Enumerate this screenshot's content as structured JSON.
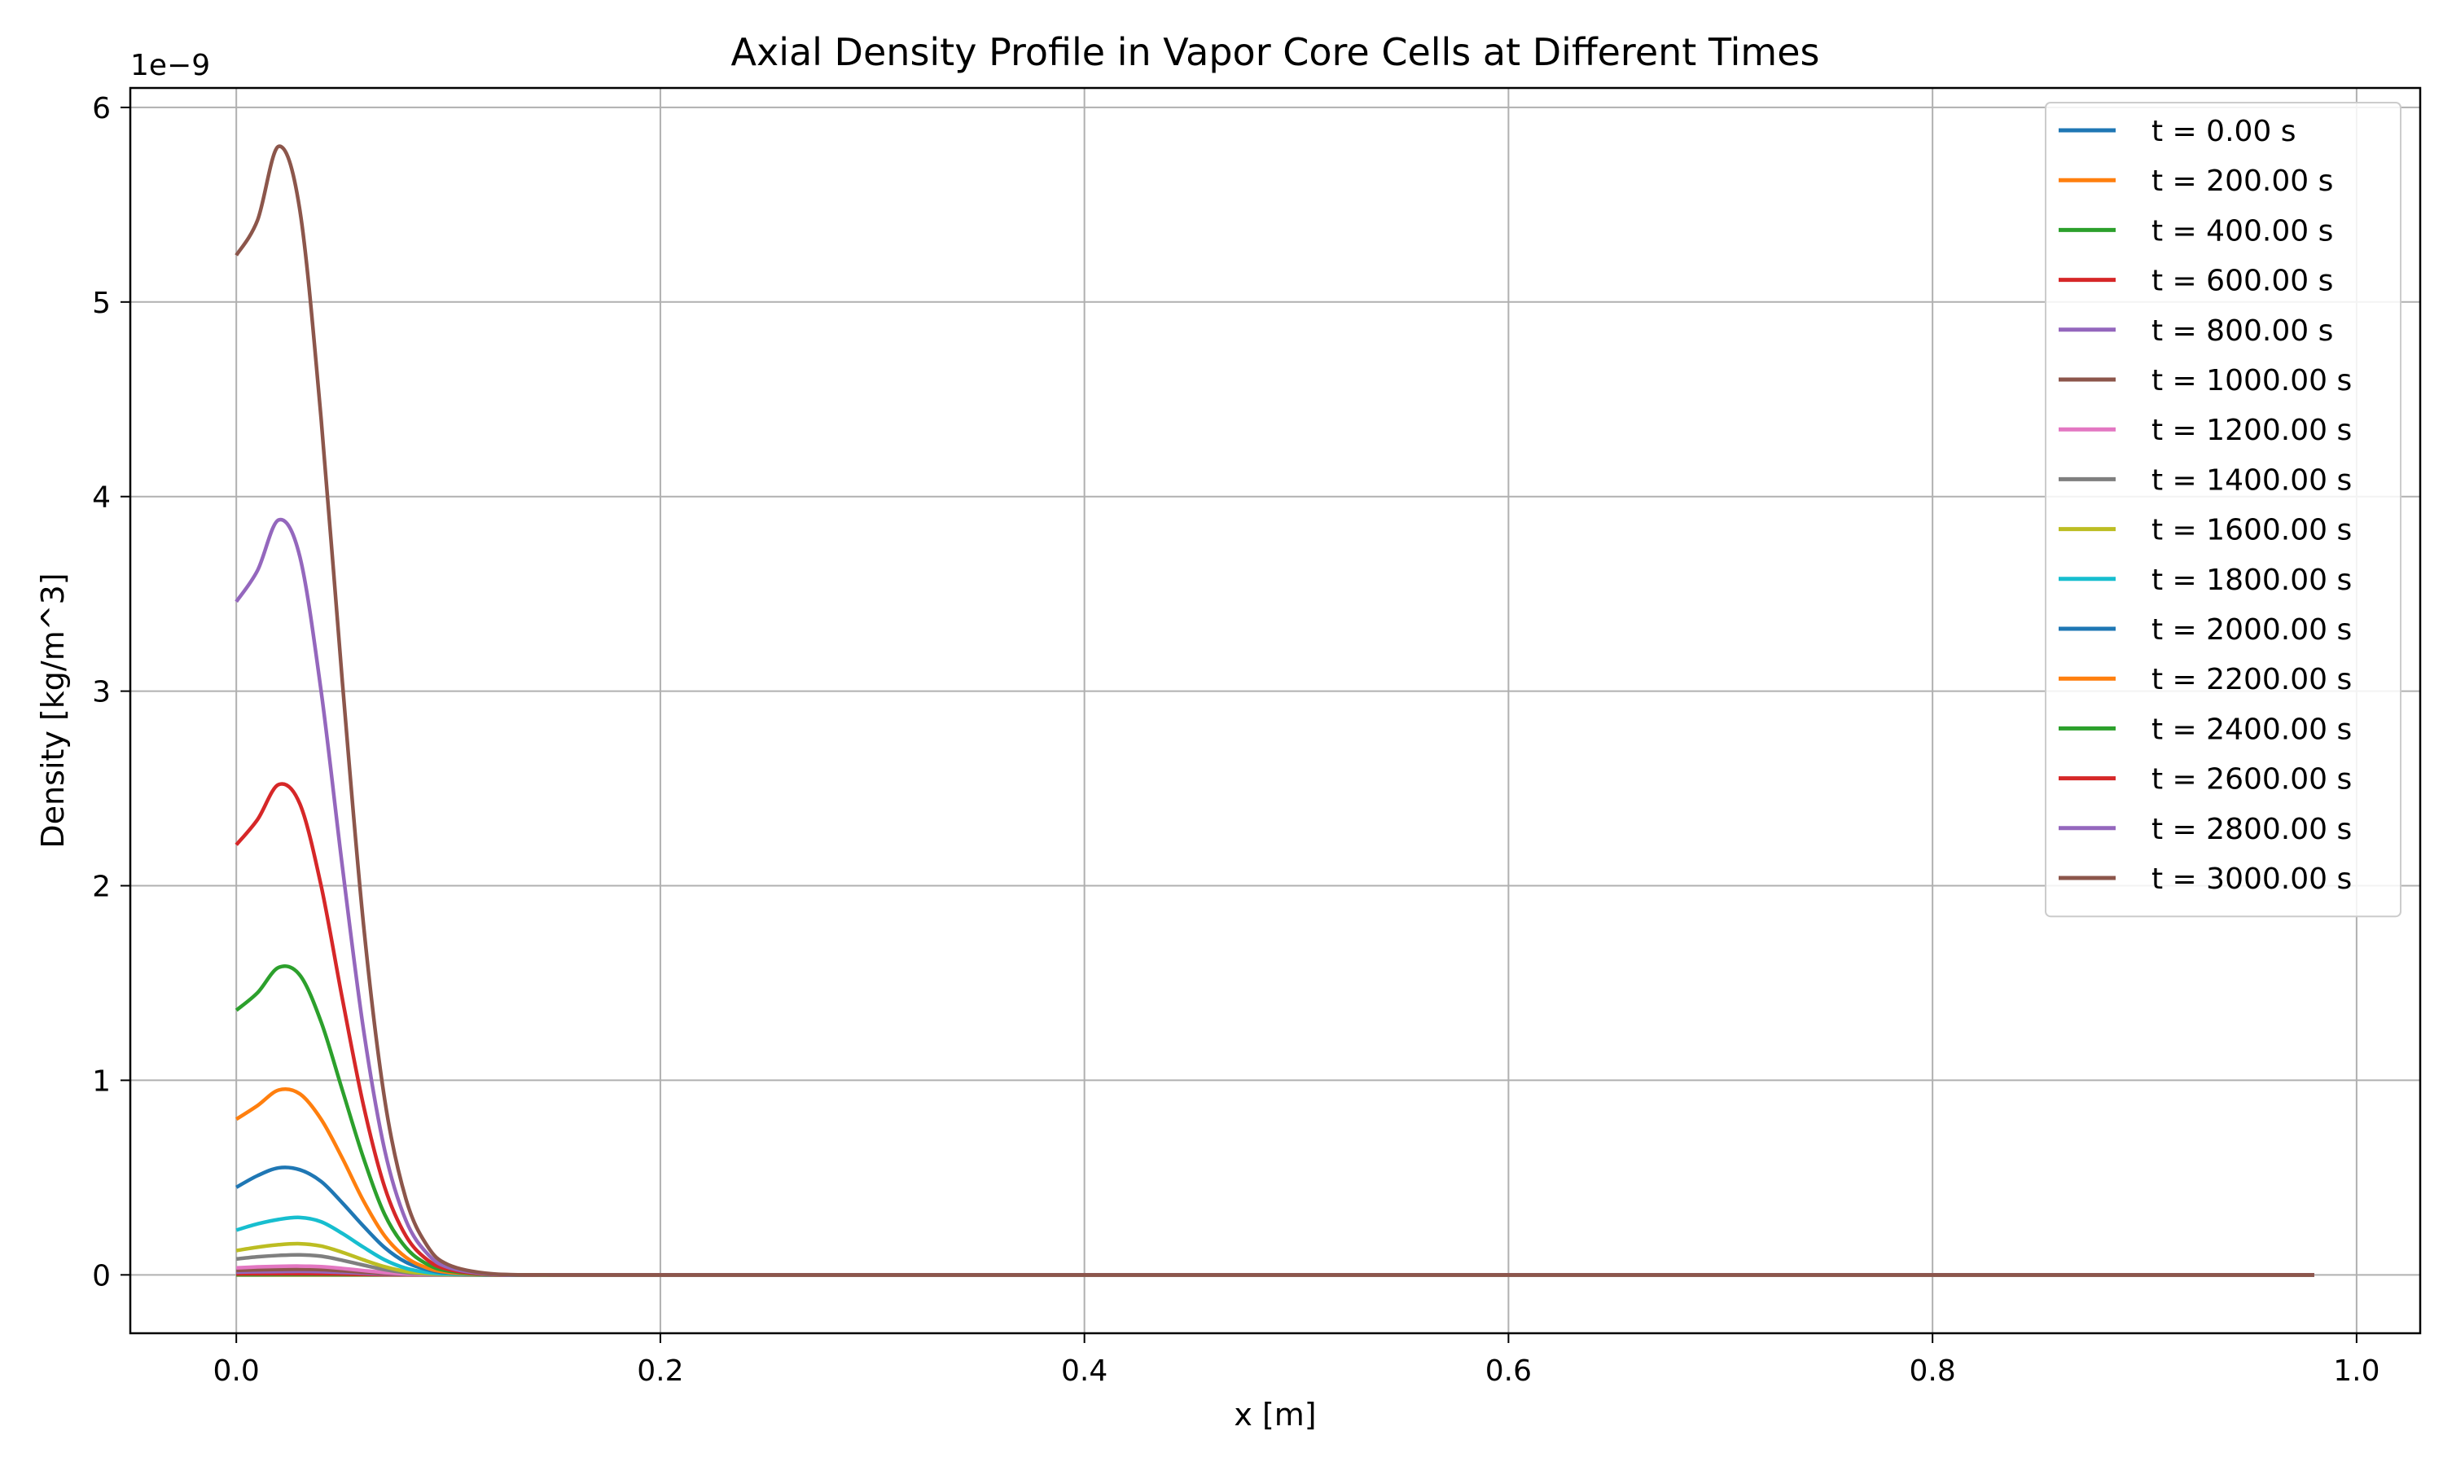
{
  "chart_data": {
    "type": "line",
    "title": "Axial Density Profile in Vapor Core Cells at Different Times",
    "xlabel": "x [m]",
    "ylabel": "Density [kg/m^3]",
    "y_offset_label": "1e−9",
    "xlim": [
      -0.05,
      1.03
    ],
    "ylim": [
      -0.3,
      6.1
    ],
    "x_ticks": [
      0.0,
      0.2,
      0.4,
      0.6,
      0.8,
      1.0
    ],
    "x_tick_labels": [
      "0.0",
      "0.2",
      "0.4",
      "0.6",
      "0.8",
      "1.0"
    ],
    "y_ticks": [
      0,
      1,
      2,
      3,
      4,
      5,
      6
    ],
    "y_tick_labels": [
      "0",
      "1",
      "2",
      "3",
      "4",
      "5",
      "6"
    ],
    "grid": true,
    "legend_position": "top-right",
    "x": [
      0.0,
      0.01,
      0.02,
      0.03,
      0.04,
      0.05,
      0.06,
      0.07,
      0.08,
      0.09,
      0.1,
      0.12,
      0.15,
      0.2,
      0.3,
      0.5,
      0.7,
      0.98
    ],
    "series": [
      {
        "name": "t = 0.00 s",
        "color": "#1f77b4",
        "values": [
          0.0,
          0.0,
          0.0,
          0.0,
          0.0,
          0.0,
          0.0,
          0.0,
          0.0,
          0.0,
          0.0,
          0.0,
          0.0,
          0.0,
          0.0,
          0.0,
          0.0,
          0.0
        ]
      },
      {
        "name": "t = 200.00 s",
        "color": "#ff7f0e",
        "values": [
          0.0,
          0.0,
          0.0,
          0.0,
          0.0,
          0.0,
          0.0,
          0.0,
          0.0,
          0.0,
          0.0,
          0.0,
          0.0,
          0.0,
          0.0,
          0.0,
          0.0,
          0.0
        ]
      },
      {
        "name": "t = 400.00 s",
        "color": "#2ca02c",
        "values": [
          0.001,
          0.0011,
          0.0012,
          0.0013,
          0.0012,
          0.0009,
          0.0006,
          0.0003,
          0.0001,
          0.0,
          0.0,
          0.0,
          0.0,
          0.0,
          0.0,
          0.0,
          0.0,
          0.0
        ]
      },
      {
        "name": "t = 600.00 s",
        "color": "#d62728",
        "values": [
          0.005,
          0.0055,
          0.006,
          0.0062,
          0.0058,
          0.0045,
          0.003,
          0.0016,
          0.0007,
          0.0003,
          0.0001,
          0.0,
          0.0,
          0.0,
          0.0,
          0.0,
          0.0,
          0.0
        ]
      },
      {
        "name": "t = 800.00 s",
        "color": "#9467bd",
        "values": [
          0.014,
          0.016,
          0.017,
          0.018,
          0.0165,
          0.013,
          0.0085,
          0.0045,
          0.002,
          0.0008,
          0.0003,
          0.0,
          0.0,
          0.0,
          0.0,
          0.0,
          0.0,
          0.0
        ]
      },
      {
        "name": "t = 1000.00 s",
        "color": "#8c564b",
        "values": [
          0.023,
          0.026,
          0.028,
          0.029,
          0.027,
          0.021,
          0.014,
          0.0075,
          0.0033,
          0.0013,
          0.0005,
          0.0,
          0.0,
          0.0,
          0.0,
          0.0,
          0.0,
          0.0
        ]
      },
      {
        "name": "t = 1200.00 s",
        "color": "#e377c2",
        "values": [
          0.036,
          0.041,
          0.044,
          0.045,
          0.042,
          0.033,
          0.022,
          0.012,
          0.0052,
          0.002,
          0.0008,
          0.0001,
          0.0,
          0.0,
          0.0,
          0.0,
          0.0,
          0.0
        ]
      },
      {
        "name": "t = 1400.00 s",
        "color": "#7f7f7f",
        "values": [
          0.082,
          0.093,
          0.1,
          0.103,
          0.096,
          0.075,
          0.05,
          0.027,
          0.012,
          0.0046,
          0.0017,
          0.0002,
          0.0,
          0.0,
          0.0,
          0.0,
          0.0,
          0.0
        ]
      },
      {
        "name": "t = 1600.00 s",
        "color": "#bcbd22",
        "values": [
          0.125,
          0.142,
          0.155,
          0.16,
          0.148,
          0.116,
          0.077,
          0.042,
          0.018,
          0.007,
          0.0026,
          0.0003,
          0.0,
          0.0,
          0.0,
          0.0,
          0.0,
          0.0
        ]
      },
      {
        "name": "t = 1800.00 s",
        "color": "#17becf",
        "values": [
          0.23,
          0.262,
          0.285,
          0.295,
          0.273,
          0.213,
          0.142,
          0.077,
          0.034,
          0.013,
          0.0048,
          0.0005,
          0.0,
          0.0,
          0.0,
          0.0,
          0.0,
          0.0
        ]
      },
      {
        "name": "t = 2000.00 s",
        "color": "#1f77b4",
        "values": [
          0.45,
          0.51,
          0.55,
          0.54,
          0.48,
          0.37,
          0.25,
          0.14,
          0.065,
          0.027,
          0.01,
          0.001,
          0.0,
          0.0,
          0.0,
          0.0,
          0.0,
          0.0
        ]
      },
      {
        "name": "t = 2200.00 s",
        "color": "#ff7f0e",
        "values": [
          0.8,
          0.87,
          0.95,
          0.93,
          0.8,
          0.6,
          0.38,
          0.2,
          0.09,
          0.036,
          0.013,
          0.0015,
          0.0,
          0.0,
          0.0,
          0.0,
          0.0,
          0.0
        ]
      },
      {
        "name": "t = 2400.00 s",
        "color": "#2ca02c",
        "values": [
          1.36,
          1.45,
          1.58,
          1.54,
          1.3,
          0.95,
          0.6,
          0.31,
          0.14,
          0.055,
          0.02,
          0.002,
          0.0,
          0.0,
          0.0,
          0.0,
          0.0,
          0.0
        ]
      },
      {
        "name": "t = 2600.00 s",
        "color": "#d62728",
        "values": [
          2.21,
          2.34,
          2.52,
          2.42,
          2.0,
          1.42,
          0.87,
          0.45,
          0.2,
          0.078,
          0.028,
          0.003,
          0.0,
          0.0,
          0.0,
          0.0,
          0.0,
          0.0
        ]
      },
      {
        "name": "t = 2800.00 s",
        "color": "#9467bd",
        "values": [
          3.46,
          3.62,
          3.88,
          3.69,
          3.0,
          2.1,
          1.26,
          0.64,
          0.28,
          0.11,
          0.038,
          0.004,
          0.0,
          0.0,
          0.0,
          0.0,
          0.0,
          0.0
        ]
      },
      {
        "name": "t = 3000.00 s",
        "color": "#8c564b",
        "values": [
          5.24,
          5.42,
          5.8,
          5.47,
          4.4,
          3.05,
          1.8,
          0.9,
          0.39,
          0.15,
          0.052,
          0.006,
          0.0,
          0.0,
          0.0,
          0.0,
          0.0,
          0.0
        ]
      }
    ]
  }
}
